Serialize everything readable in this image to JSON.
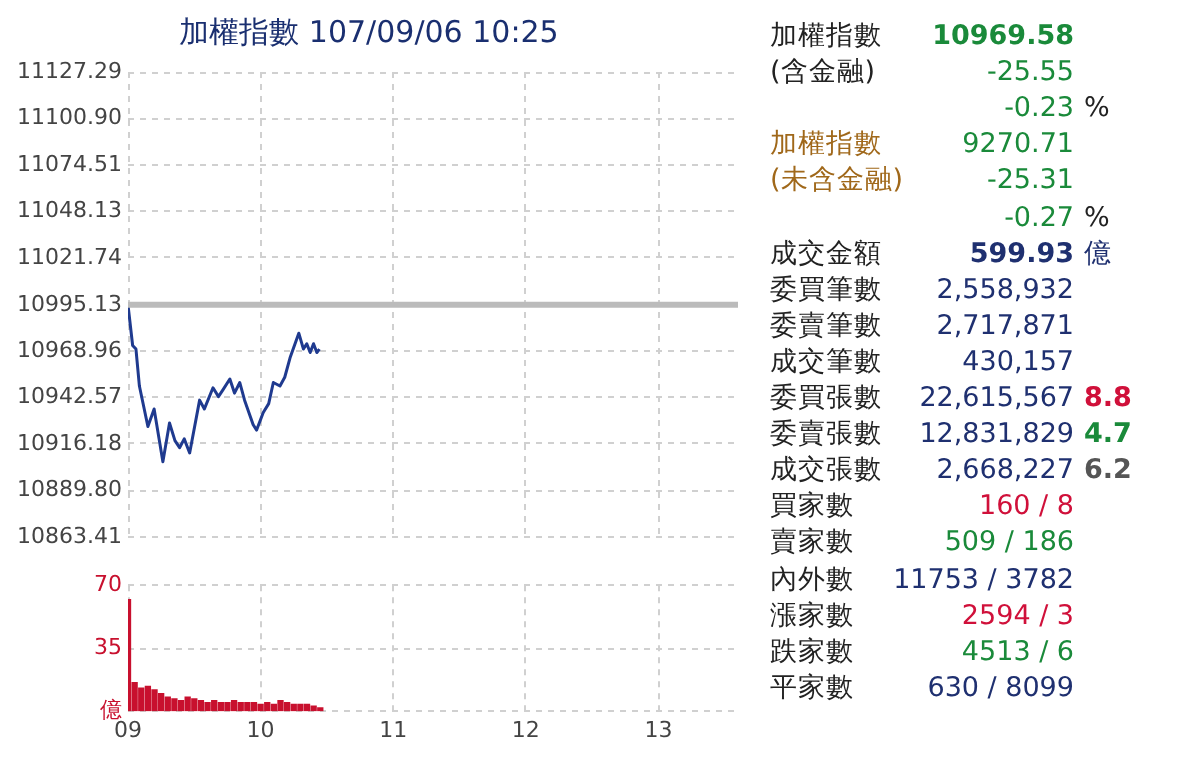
{
  "chart_data": [
    {
      "type": "line",
      "title": "加權指數 107/09/06 10:25",
      "color": "#1f3a8f",
      "grid": true,
      "tick_labels": "y",
      "x": [
        9.0,
        9.035,
        9.06,
        9.086,
        9.15,
        9.197,
        9.263,
        9.313,
        9.354,
        9.389,
        9.424,
        9.465,
        9.54,
        9.576,
        9.641,
        9.682,
        9.717,
        9.768,
        9.803,
        9.843,
        9.879,
        9.944,
        9.97,
        10.02,
        10.061,
        10.096,
        10.146,
        10.182,
        10.222,
        10.288,
        10.323,
        10.348,
        10.374,
        10.399,
        10.424,
        10.444
      ],
      "values": [
        10995,
        10972,
        10970,
        10949,
        10926,
        10936,
        10906,
        10928,
        10918,
        10914,
        10919,
        10911,
        10941,
        10936,
        10948,
        10943,
        10947,
        10953,
        10945,
        10951,
        10941,
        10927,
        10924,
        10934,
        10939,
        10951,
        10949,
        10954,
        10965,
        10979,
        10970,
        10973,
        10968,
        10973,
        10968,
        10970
      ],
      "xlim": [
        9,
        13.6
      ],
      "xticks": [
        9,
        10,
        11,
        12,
        13
      ],
      "ylim": [
        10863.41,
        11127.29
      ],
      "yticks": [
        10863.41,
        {
          "value": 10889.8,
          "label": "10889.80"
        },
        10916.18,
        10942.57,
        10968.96,
        10995.13,
        11021.74,
        11048.13,
        11074.51,
        {
          "value": 11100.9,
          "label": "11100.90"
        },
        11127.29
      ],
      "ref_lines": [
        {
          "axis": "y",
          "value": 10995.13,
          "color": "#bbbbbb"
        }
      ]
    },
    {
      "type": "bar",
      "color": "#c8102e",
      "grid": true,
      "x": [
        9.0,
        9.05,
        9.1,
        9.15,
        9.2,
        9.25,
        9.3,
        9.35,
        9.4,
        9.45,
        9.5,
        9.55,
        9.6,
        9.65,
        9.7,
        9.75,
        9.8,
        9.85,
        9.9,
        9.95,
        10.0,
        10.05,
        10.1,
        10.15,
        10.2,
        10.25,
        10.3,
        10.35,
        10.4,
        10.45
      ],
      "values": [
        62,
        16,
        13,
        14,
        12,
        10,
        8,
        7,
        6,
        8,
        7,
        6,
        5,
        6,
        5,
        5,
        6,
        5,
        5,
        5,
        4,
        5,
        4,
        6,
        5,
        4,
        4,
        4,
        3,
        2
      ],
      "xlim": [
        9,
        13.6
      ],
      "xticks": [
        {
          "value": 9,
          "label": "09"
        },
        10,
        11,
        12,
        13
      ],
      "ylim": [
        0,
        70
      ],
      "yticks": [
        {
          "value": 0,
          "label": "億"
        },
        35,
        70
      ]
    },
    {
      "type": "other",
      "annotations": [
        "加權指數",
        "10969.58",
        "(含金融)",
        "-25.55",
        "-0.23",
        "%",
        "加權指數",
        "9270.71",
        "(未含金融)",
        "-25.31",
        "-0.27",
        "%",
        "成交金額",
        "599.93",
        "億",
        "委買筆數",
        "2,558,932",
        "委賣筆數",
        "2,717,871",
        "成交筆數",
        "430,157",
        "委買張數",
        "22,615,567",
        "8.8",
        "委賣張數",
        "12,831,829",
        "4.7",
        "成交張數",
        "2,668,227",
        "6.2",
        "買家數",
        "160 / 8",
        "賣家數",
        "509 / 186",
        "內外數",
        "11753 / 3782",
        "漲家數",
        "2594 / 3",
        "跌家數",
        "4513 / 6",
        "平家數",
        "630 / 8099"
      ]
    }
  ]
}
